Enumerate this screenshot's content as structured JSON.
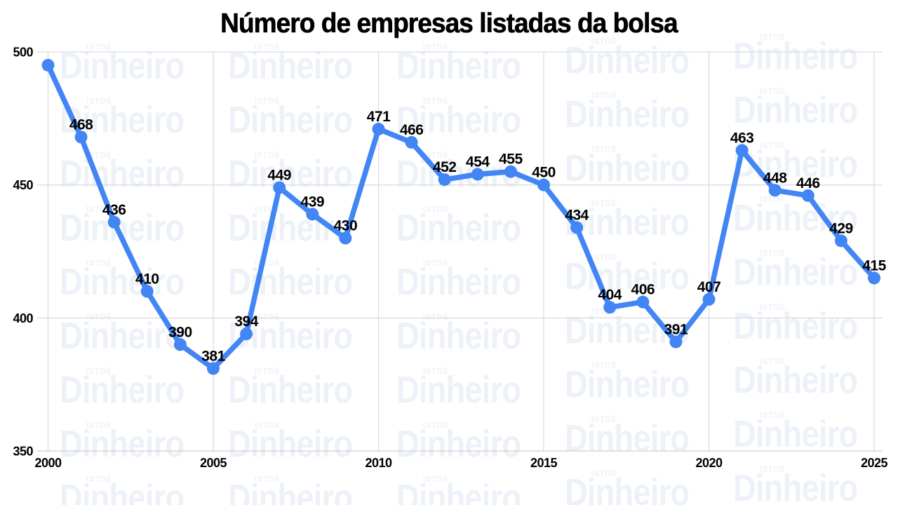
{
  "header": {
    "title": "Número de empresas listadas da bolsa"
  },
  "watermark": {
    "brand_top": "ISTOÉ",
    "brand_main": "Dinheiro",
    "color": "#edf1f8"
  },
  "chart_data": {
    "type": "line",
    "title": "Número de empresas listadas da bolsa",
    "x": [
      2000,
      2001,
      2002,
      2003,
      2004,
      2005,
      2006,
      2007,
      2008,
      2009,
      2010,
      2011,
      2012,
      2013,
      2014,
      2015,
      2016,
      2017,
      2018,
      2019,
      2020,
      2021,
      2022,
      2023,
      2024,
      2025
    ],
    "values": [
      495,
      468,
      436,
      410,
      390,
      381,
      394,
      449,
      439,
      430,
      471,
      466,
      452,
      454,
      455,
      450,
      434,
      404,
      406,
      391,
      407,
      463,
      448,
      446,
      429,
      415
    ],
    "point_labels": [
      "",
      "468",
      "436",
      "410",
      "390",
      "381",
      "394",
      "449",
      "439",
      "430",
      "471",
      "466",
      "452",
      "454",
      "455",
      "450",
      "434",
      "404",
      "406",
      "391",
      "407",
      "463",
      "448",
      "446",
      "429",
      "415"
    ],
    "x_ticks": [
      2000,
      2005,
      2010,
      2015,
      2020,
      2025
    ],
    "y_ticks": [
      350,
      400,
      450,
      500
    ],
    "xlim": [
      2000,
      2025
    ],
    "ylim": [
      350,
      500
    ],
    "grid": true,
    "legend_position": "none",
    "line_color": "#4285f4",
    "grid_color": "#dadce0",
    "axis_color": "#cdd0d4",
    "label_color": "#000000"
  }
}
